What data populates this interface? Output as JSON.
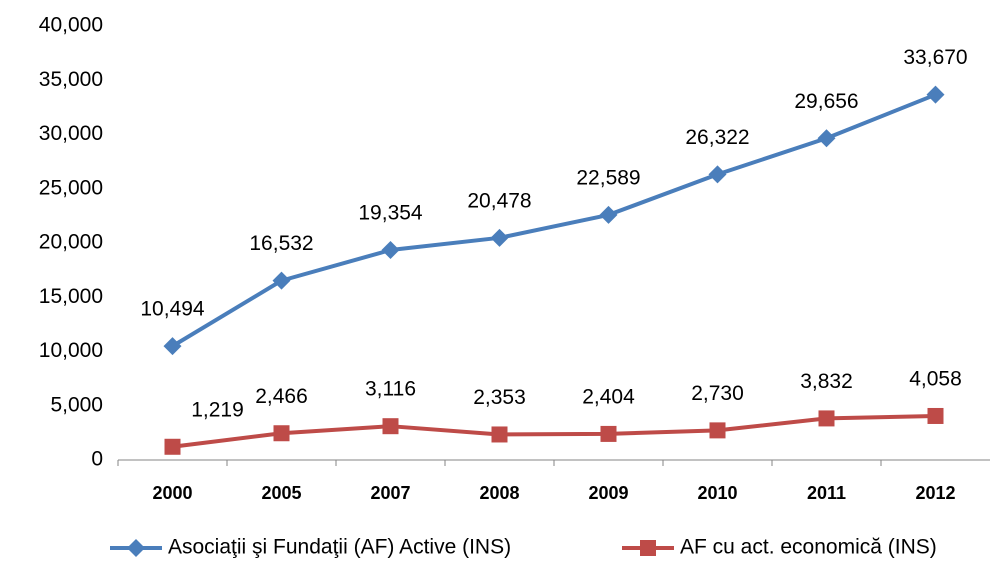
{
  "chart_data": {
    "type": "line",
    "categories": [
      "2000",
      "2005",
      "2007",
      "2008",
      "2009",
      "2010",
      "2011",
      "2012"
    ],
    "series": [
      {
        "name": "Asociaţii şi Fundaţii (AF) Active (INS)",
        "color": "#4a7ebb",
        "marker": "diamond",
        "values": [
          10494,
          16532,
          19354,
          20478,
          22589,
          26322,
          29656,
          33670
        ],
        "value_labels": [
          "10,494",
          "16,532",
          "19,354",
          "20,478",
          "22,589",
          "26,322",
          "29,656",
          "33,670"
        ]
      },
      {
        "name": "AF cu act. economică (INS)",
        "color": "#be4b48",
        "marker": "square",
        "values": [
          1219,
          2466,
          3116,
          2353,
          2404,
          2730,
          3832,
          4058
        ],
        "value_labels": [
          "1,219",
          "2,466",
          "3,116",
          "2,353",
          "2,404",
          "2,730",
          "3,832",
          "4,058"
        ]
      }
    ],
    "ylim": [
      0,
      40000
    ],
    "yticks": [
      0,
      {
        "value": 5000,
        "label": "5,000"
      },
      {
        "value": 10000,
        "label": "10,000"
      },
      {
        "value": 15000,
        "label": "15,000"
      },
      {
        "value": 20000,
        "label": "20,000"
      },
      {
        "value": 25000,
        "label": "25,000"
      },
      {
        "value": 30000,
        "label": "30,000"
      },
      {
        "value": 35000,
        "label": "35,000"
      },
      {
        "value": 40000,
        "label": "40,000"
      }
    ],
    "grid": false,
    "legend": "bottom"
  }
}
